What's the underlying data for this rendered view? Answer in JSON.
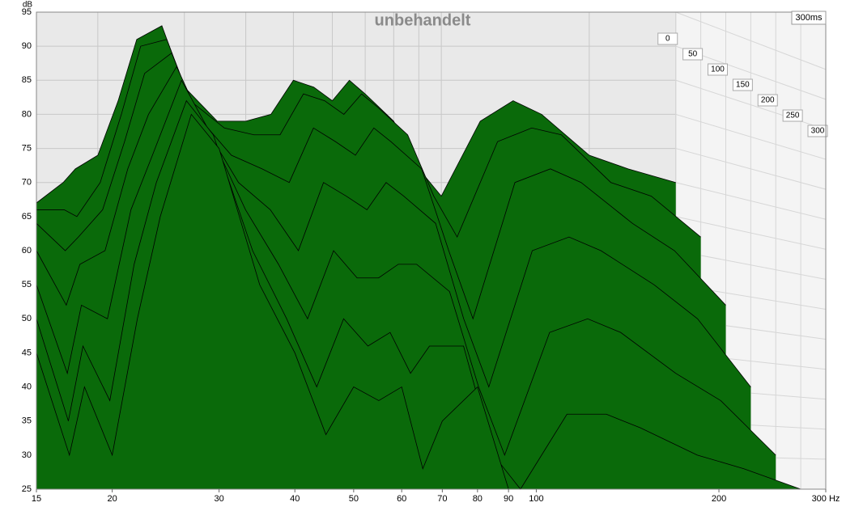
{
  "chart_data": {
    "type": "waterfall",
    "title": "unbehandelt",
    "ylabel": "dB",
    "depth_label": "300ms",
    "x": [
      15,
      17,
      18,
      20,
      22,
      24,
      27,
      30,
      35,
      40,
      45,
      50,
      55,
      60,
      65,
      70,
      80,
      90,
      100,
      120,
      140,
      160,
      200,
      240,
      300
    ],
    "xlim": [
      15,
      300
    ],
    "xlog": true,
    "xticks": [
      15,
      20,
      30,
      40,
      50,
      60,
      70,
      80,
      90,
      100,
      200,
      {
        "value": 300,
        "label": "300 Hz"
      }
    ],
    "ylim": [
      25,
      95
    ],
    "yticks": [
      25,
      30,
      35,
      40,
      45,
      50,
      55,
      60,
      65,
      70,
      75,
      80,
      85,
      90,
      95
    ],
    "zlim": [
      0,
      300
    ],
    "zticks": [
      0,
      50,
      100,
      150,
      200,
      250,
      300
    ],
    "color": "#0a6a0a",
    "series": [
      {
        "z": 0,
        "values": [
          67,
          70,
          72,
          74,
          82,
          91,
          93,
          84,
          79,
          79,
          80,
          85,
          84,
          82,
          85,
          83,
          79,
          72,
          68,
          79,
          82,
          80,
          74,
          72,
          70
        ]
      },
      {
        "z": 50,
        "values": [
          66,
          66,
          65,
          70,
          80,
          90,
          91,
          82,
          78,
          77,
          77,
          83,
          82,
          80,
          83,
          81,
          77,
          68,
          62,
          76,
          78,
          77,
          70,
          68,
          62
        ]
      },
      {
        "z": 100,
        "values": [
          64,
          60,
          62,
          66,
          76,
          86,
          89,
          80,
          74,
          72,
          70,
          78,
          76,
          74,
          78,
          76,
          72,
          60,
          50,
          70,
          72,
          70,
          64,
          60,
          52
        ]
      },
      {
        "z": 150,
        "values": [
          60,
          52,
          58,
          60,
          72,
          80,
          87,
          79,
          70,
          66,
          60,
          70,
          68,
          66,
          70,
          68,
          64,
          50,
          40,
          60,
          62,
          60,
          55,
          50,
          40
        ]
      },
      {
        "z": 200,
        "values": [
          55,
          42,
          52,
          50,
          66,
          74,
          85,
          78,
          66,
          58,
          50,
          60,
          56,
          56,
          58,
          58,
          54,
          40,
          30,
          48,
          50,
          48,
          42,
          38,
          30
        ]
      },
      {
        "z": 250,
        "values": [
          50,
          35,
          46,
          38,
          58,
          70,
          82,
          77,
          60,
          50,
          40,
          50,
          46,
          48,
          42,
          46,
          46,
          30,
          25,
          36,
          36,
          34,
          30,
          28,
          25
        ]
      },
      {
        "z": 300,
        "values": [
          45,
          30,
          40,
          30,
          50,
          65,
          80,
          75,
          55,
          45,
          33,
          40,
          38,
          40,
          28,
          35,
          40,
          25,
          25,
          25,
          25,
          25,
          25,
          25,
          25
        ]
      }
    ]
  }
}
